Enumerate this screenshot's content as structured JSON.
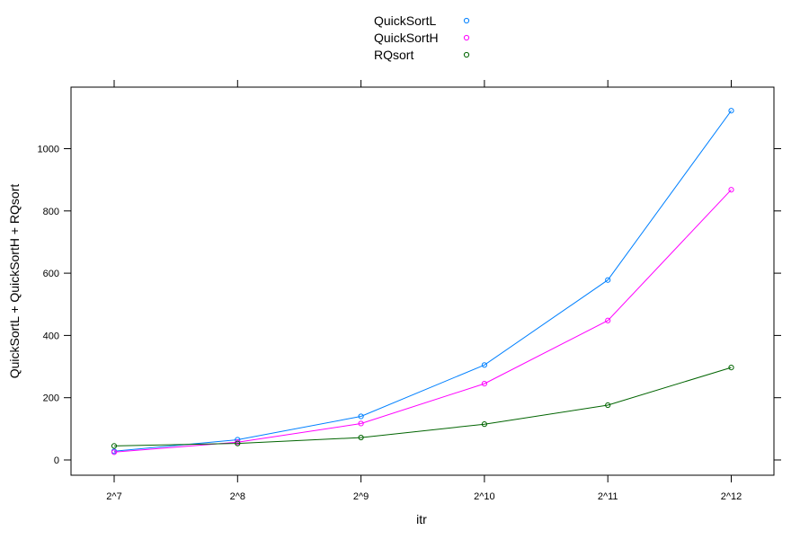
{
  "chart_data": {
    "type": "line",
    "title": "",
    "xlabel": "itr",
    "ylabel": "QuickSortL + QuickSortH + RQsort",
    "categories": [
      "2^7",
      "2^8",
      "2^9",
      "2^10",
      "2^11",
      "2^12"
    ],
    "yticks": [
      0,
      200,
      400,
      600,
      800,
      1000
    ],
    "ylim": [
      -45,
      1195
    ],
    "grid": false,
    "legend_position": "top-center",
    "series": [
      {
        "name": "QuickSortL",
        "color": "#0080ff",
        "values": [
          28,
          65,
          140,
          305,
          578,
          1122
        ]
      },
      {
        "name": "QuickSortH",
        "color": "#ff00ff",
        "values": [
          25,
          57,
          117,
          245,
          448,
          868
        ]
      },
      {
        "name": "RQsort",
        "color": "#006400",
        "values": [
          45,
          53,
          72,
          115,
          176,
          297
        ]
      }
    ]
  }
}
